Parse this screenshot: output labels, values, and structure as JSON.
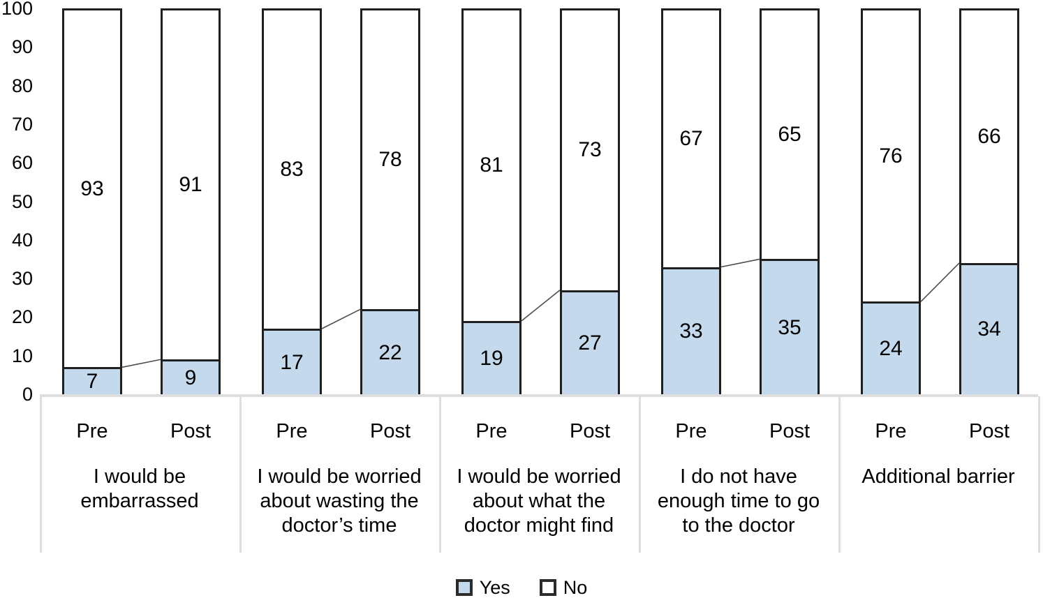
{
  "chart_data": {
    "type": "bar",
    "subtype": "stacked-100-percent",
    "orientation": "vertical",
    "title": "",
    "xlabel": "",
    "ylabel": "",
    "y_axis": {
      "min": 0,
      "max": 100,
      "step": 10,
      "ticks": [
        0,
        10,
        20,
        30,
        40,
        50,
        60,
        70,
        80,
        90,
        100
      ]
    },
    "grid": false,
    "legend_position": "bottom",
    "series_names": [
      "Yes",
      "No"
    ],
    "sub_categories": [
      "Pre",
      "Post"
    ],
    "categories": [
      "I would be\nembarrassed",
      "I would be worried\nabout wasting the\ndoctor’s time",
      "I would be worried\nabout what the\ndoctor might find",
      "I do not have\nenough time to go\nto the doctor",
      "Additional barrier"
    ],
    "groups": [
      {
        "label": "I would be\nembarrassed",
        "bars": [
          {
            "sub_label": "Pre",
            "yes": 7,
            "no": 93
          },
          {
            "sub_label": "Post",
            "yes": 9,
            "no": 91
          }
        ]
      },
      {
        "label": "I would be worried\nabout wasting the\ndoctor’s time",
        "bars": [
          {
            "sub_label": "Pre",
            "yes": 17,
            "no": 83
          },
          {
            "sub_label": "Post",
            "yes": 22,
            "no": 78
          }
        ]
      },
      {
        "label": "I would be worried\nabout what the\ndoctor might find",
        "bars": [
          {
            "sub_label": "Pre",
            "yes": 19,
            "no": 81
          },
          {
            "sub_label": "Post",
            "yes": 27,
            "no": 73
          }
        ]
      },
      {
        "label": "I do not have\nenough time to go\nto the doctor",
        "bars": [
          {
            "sub_label": "Pre",
            "yes": 33,
            "no": 67
          },
          {
            "sub_label": "Post",
            "yes": 35,
            "no": 65
          }
        ]
      },
      {
        "label": "Additional barrier",
        "bars": [
          {
            "sub_label": "Pre",
            "yes": 24,
            "no": 76
          },
          {
            "sub_label": "Post",
            "yes": 34,
            "no": 66
          }
        ]
      }
    ],
    "connector_lines": "thin gray line joins top of Yes segment from Pre bar to Post bar within each category group",
    "legend": {
      "items": [
        {
          "label": "Yes",
          "color": "#C5D9ED"
        },
        {
          "label": "No",
          "color": "#FFFFFF"
        }
      ]
    },
    "colors": {
      "yes_fill": "#C5D9ED",
      "no_fill": "#FFFFFF",
      "bar_border": "#1F1F1F",
      "connector_line": "#4D4D4D",
      "category_box_line": "#DEDEDE",
      "text": "#000000"
    }
  }
}
